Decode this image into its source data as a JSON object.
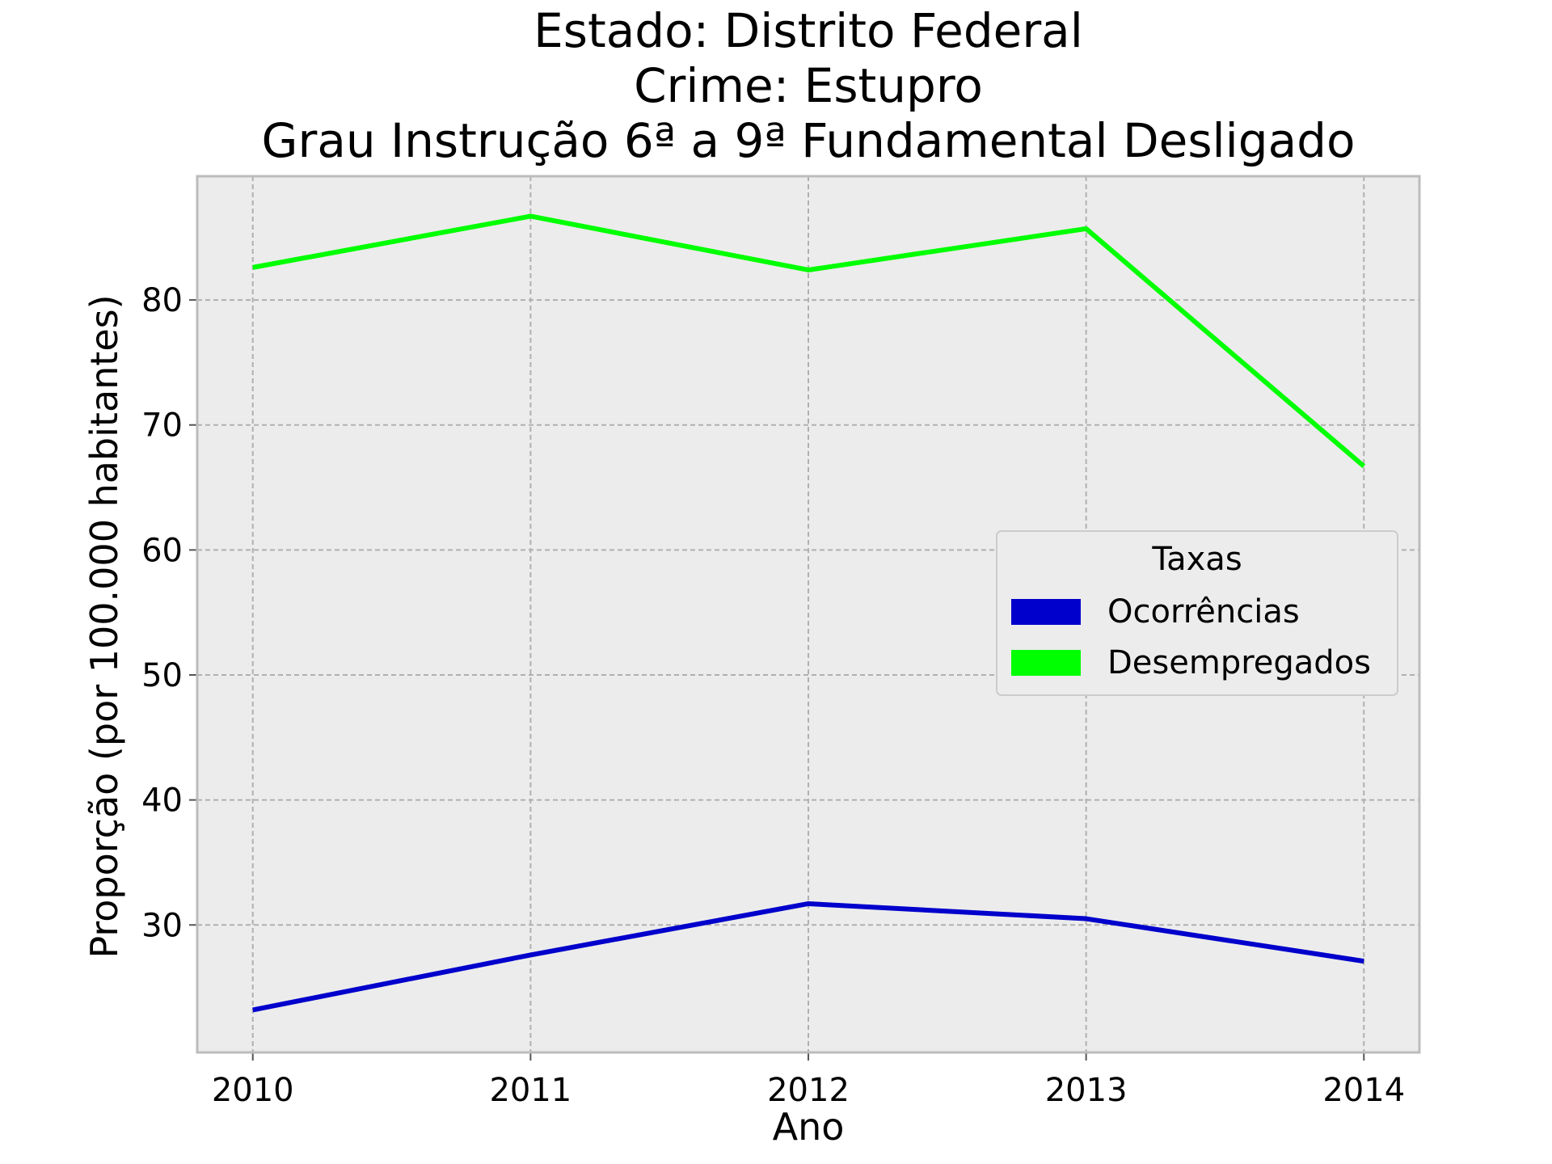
{
  "chart_data": {
    "type": "line",
    "title_lines": [
      "Estado: Distrito Federal",
      "Crime: Estupro",
      "Grau Instrução  6ª a 9ª Fundamental   Desligado"
    ],
    "xlabel": "Ano",
    "ylabel": "Proporção (por 100.000 habitantes)",
    "x": [
      2010,
      2011,
      2012,
      2013,
      2014
    ],
    "x_tick_labels": [
      "2010",
      "2011",
      "2012",
      "2013",
      "2014"
    ],
    "xlim": [
      2009.8,
      2014.2
    ],
    "ylim": [
      19.8,
      89.9
    ],
    "y_ticks": [
      30,
      40,
      50,
      60,
      70,
      80
    ],
    "y_tick_labels": [
      "30",
      "40",
      "50",
      "60",
      "70",
      "80"
    ],
    "grid": true,
    "legend_title": "Taxas",
    "legend_position": "center-right",
    "series": [
      {
        "name": "Ocorrências",
        "color": "#0000cc",
        "values": [
          23.2,
          27.6,
          31.7,
          30.5,
          27.1
        ]
      },
      {
        "name": "Desempregados",
        "color": "#00ff00",
        "values": [
          82.6,
          86.7,
          82.4,
          85.7,
          66.7
        ]
      }
    ],
    "colors": {
      "plot_background": "#ececec",
      "grid": "#b0b0b0",
      "frame": "#bcbcbc"
    }
  }
}
